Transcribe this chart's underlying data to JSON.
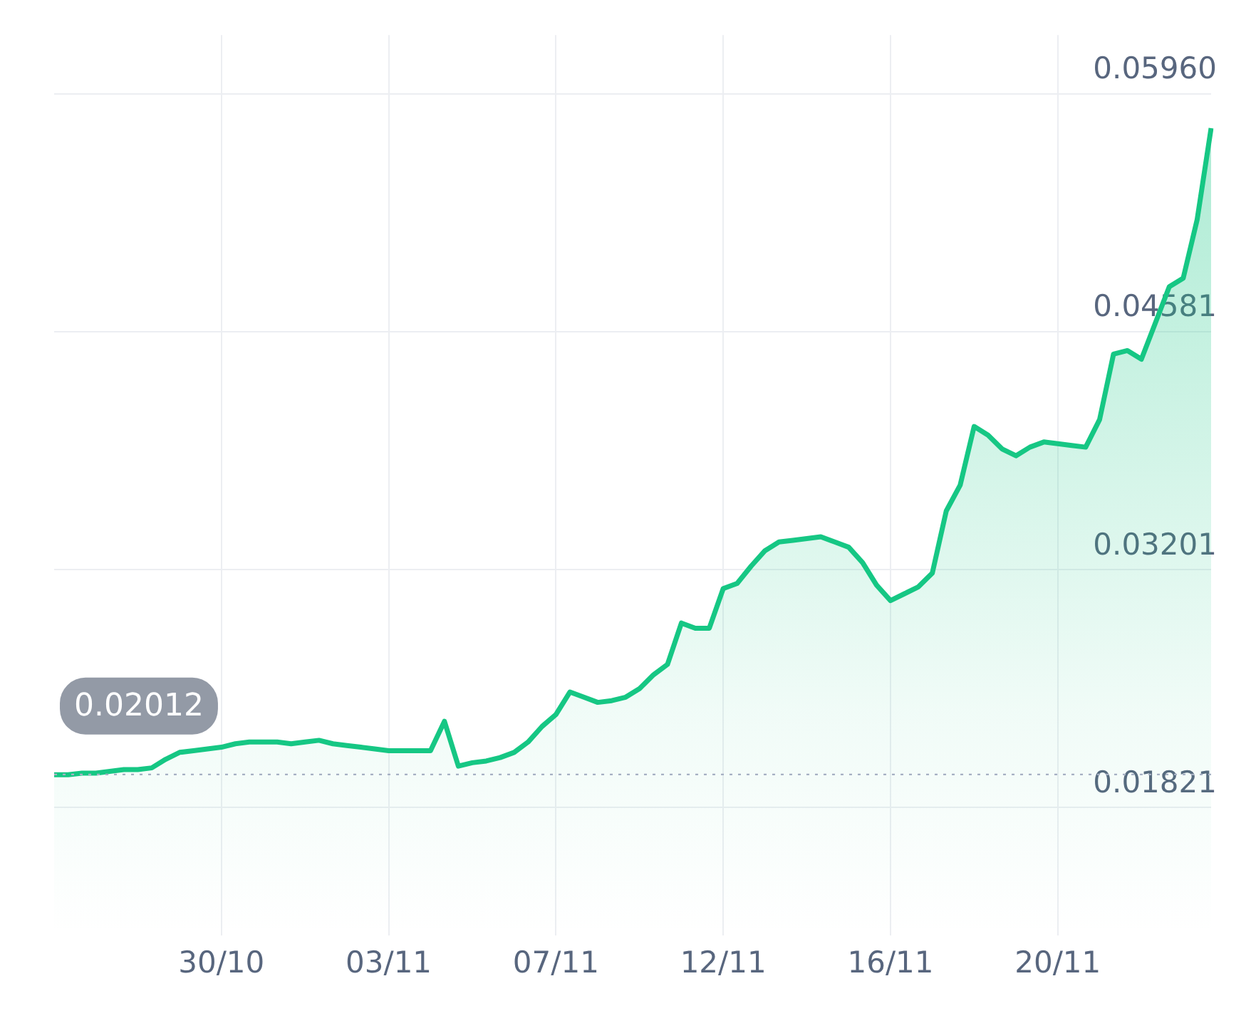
{
  "chart_data": {
    "type": "area",
    "categories": [
      null,
      null,
      null,
      null,
      null,
      null,
      null,
      null,
      null,
      null,
      null,
      null,
      "30/10",
      null,
      null,
      null,
      null,
      null,
      null,
      null,
      null,
      null,
      null,
      null,
      "03/11",
      null,
      null,
      null,
      null,
      null,
      null,
      null,
      null,
      null,
      null,
      null,
      "07/11",
      null,
      null,
      null,
      null,
      null,
      null,
      null,
      null,
      null,
      null,
      null,
      "12/11",
      null,
      null,
      null,
      null,
      null,
      null,
      null,
      null,
      null,
      null,
      null,
      "16/11",
      null,
      null,
      null,
      null,
      null,
      null,
      null,
      null,
      null,
      null,
      null,
      "20/11",
      null,
      null,
      null,
      null,
      null,
      null,
      null,
      null,
      null,
      null,
      null
    ],
    "series": [
      {
        "color": "#16c784",
        "values": [
          0.0201,
          0.0201,
          0.0202,
          0.0202,
          0.0203,
          0.0204,
          0.0204,
          0.0205,
          0.021,
          0.0214,
          0.0215,
          0.0216,
          0.0217,
          0.0219,
          0.022,
          0.022,
          0.022,
          0.0219,
          0.022,
          0.0221,
          0.0219,
          0.0218,
          0.0217,
          0.0216,
          0.0215,
          0.0215,
          0.0215,
          0.0215,
          0.0232,
          0.0206,
          0.0208,
          0.0209,
          0.0211,
          0.0214,
          0.022,
          0.0229,
          0.0236,
          0.0249,
          0.0246,
          0.0243,
          0.0244,
          0.0246,
          0.0251,
          0.0259,
          0.0265,
          0.0289,
          0.0286,
          0.0286,
          0.0309,
          0.0312,
          0.0322,
          0.0331,
          0.0336,
          0.0337,
          0.0338,
          0.0339,
          0.0336,
          0.0333,
          0.0324,
          0.0311,
          0.0302,
          0.0306,
          0.031,
          0.0318,
          0.0354,
          0.0369,
          0.0403,
          0.0398,
          0.039,
          0.0386,
          0.0391,
          0.0394,
          0.0393,
          0.0392,
          0.0391,
          0.0407,
          0.0445,
          0.0447,
          0.0442,
          0.0463,
          0.0484,
          0.0489,
          0.0523,
          0.0576
        ]
      }
    ],
    "ylim": [
      0.0108,
      0.063
    ],
    "yticks": [
      0.01821,
      0.03201,
      0.04581,
      {
        "value": 0.0596,
        "label": "0.05960"
      }
    ],
    "ref_lines": [
      {
        "axis": "y",
        "value": 0.02012,
        "label": "0.02012",
        "line_style": "dotted",
        "color": "#a6b0c3"
      }
    ],
    "grid": true,
    "marker": "none",
    "line_style": "solid"
  }
}
